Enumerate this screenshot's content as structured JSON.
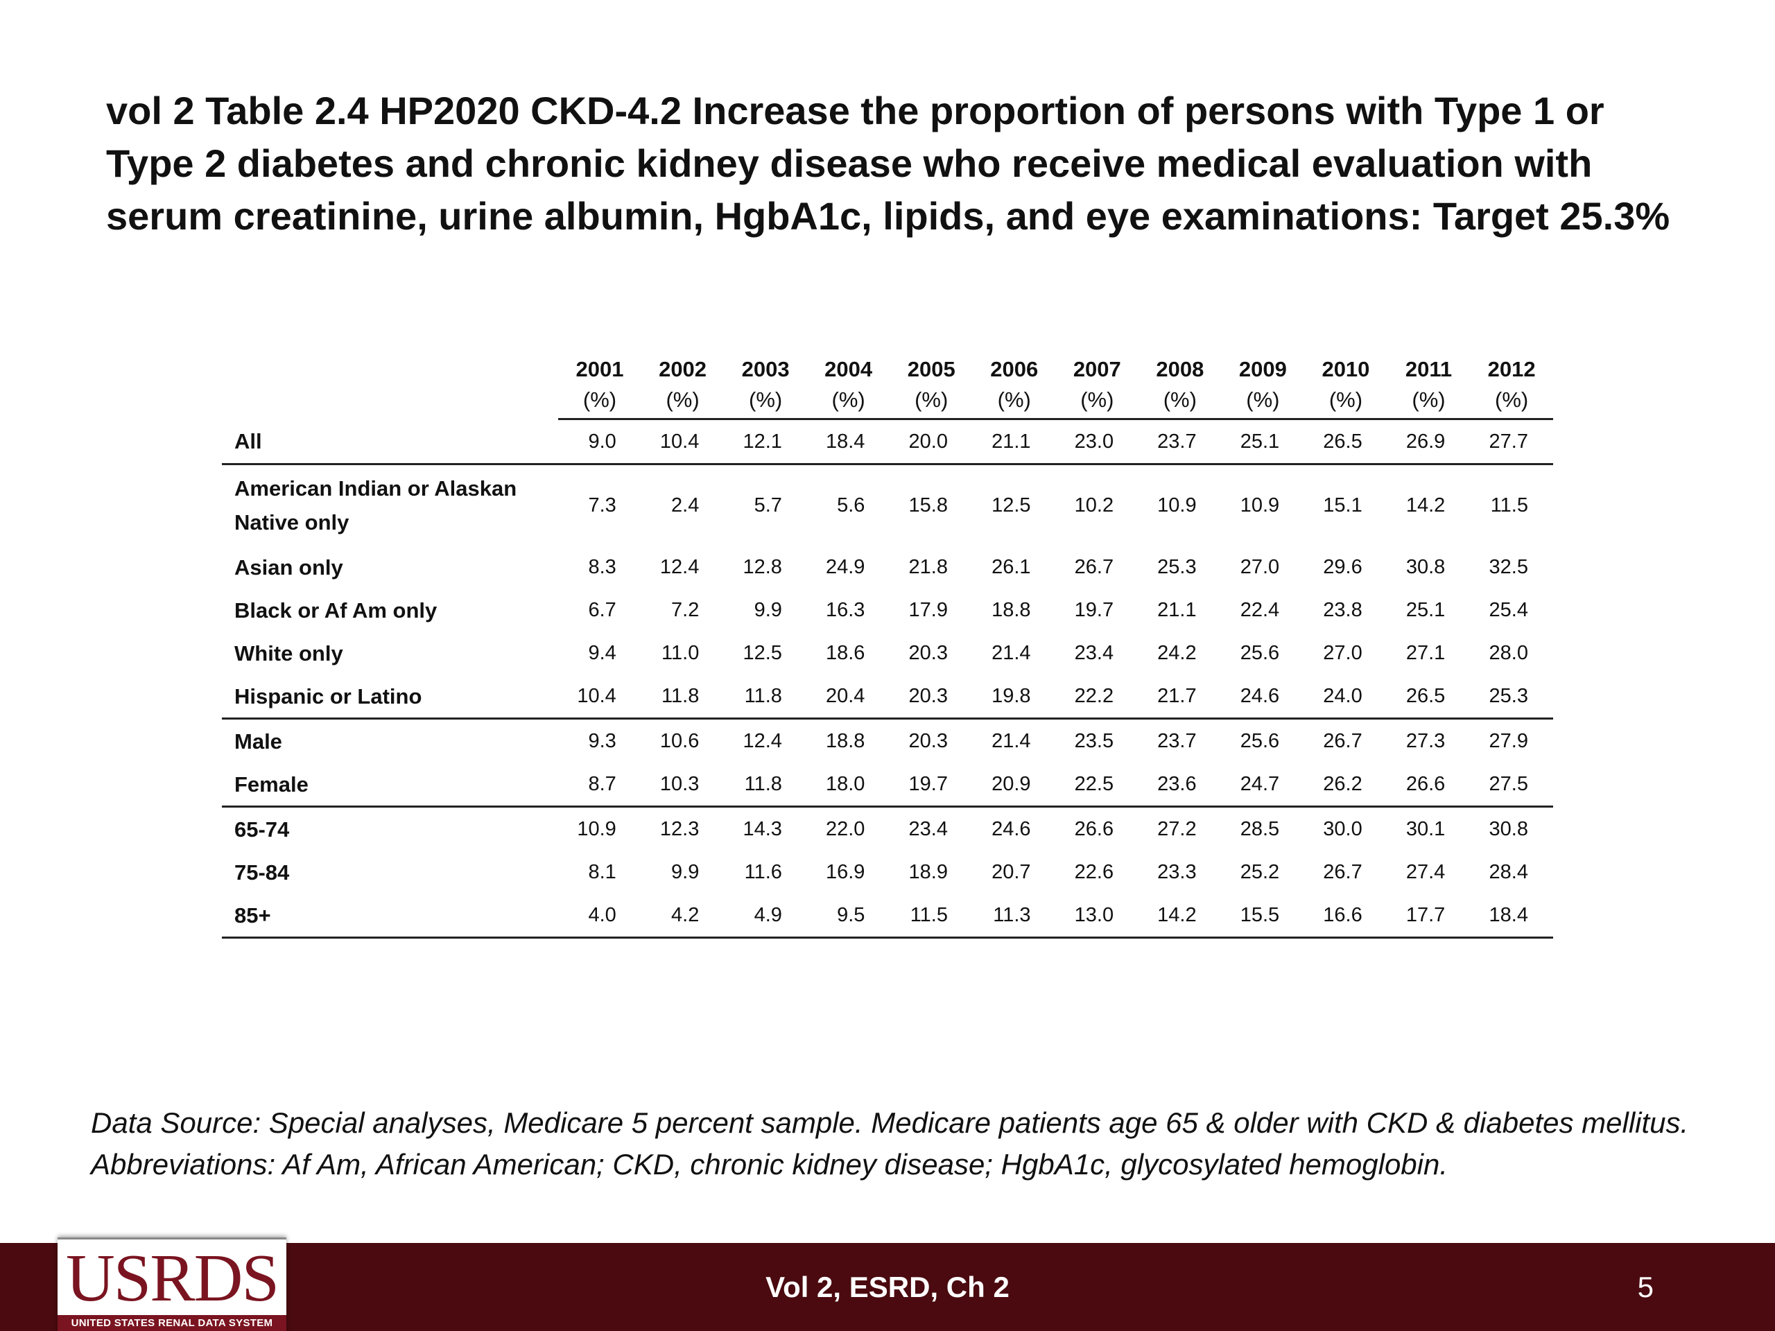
{
  "slide": {
    "title": "vol 2 Table 2.4  HP2020 CKD-4.2 Increase the proportion of persons with Type 1 or Type 2 diabetes and chronic kidney disease who receive medical evaluation with serum creatinine, urine albumin, HgbA1c, lipids, and eye examinations: Target 25.3%",
    "source_note": "Data Source: Special analyses, Medicare 5 percent sample. Medicare patients age 65 & older with CKD & diabetes mellitus. Abbreviations: Af Am, African American; CKD, chronic kidney disease; HgbA1c, glycosylated hemoglobin."
  },
  "table": {
    "years": [
      "2001",
      "2002",
      "2003",
      "2004",
      "2005",
      "2006",
      "2007",
      "2008",
      "2009",
      "2010",
      "2011",
      "2012"
    ],
    "unit": "(%)",
    "rows": [
      {
        "label": "All",
        "values": [
          "9.0",
          "10.4",
          "12.1",
          "18.4",
          "20.0",
          "21.1",
          "23.0",
          "23.7",
          "25.1",
          "26.5",
          "26.9",
          "27.7"
        ]
      },
      {
        "label": "American Indian or Alaskan Native only",
        "values": [
          "7.3",
          "2.4",
          "5.7",
          "5.6",
          "15.8",
          "12.5",
          "10.2",
          "10.9",
          "10.9",
          "15.1",
          "14.2",
          "11.5"
        ]
      },
      {
        "label": "Asian only",
        "values": [
          "8.3",
          "12.4",
          "12.8",
          "24.9",
          "21.8",
          "26.1",
          "26.7",
          "25.3",
          "27.0",
          "29.6",
          "30.8",
          "32.5"
        ]
      },
      {
        "label": "Black or Af Am only",
        "values": [
          "6.7",
          "7.2",
          "9.9",
          "16.3",
          "17.9",
          "18.8",
          "19.7",
          "21.1",
          "22.4",
          "23.8",
          "25.1",
          "25.4"
        ]
      },
      {
        "label": "White only",
        "values": [
          "9.4",
          "11.0",
          "12.5",
          "18.6",
          "20.3",
          "21.4",
          "23.4",
          "24.2",
          "25.6",
          "27.0",
          "27.1",
          "28.0"
        ]
      },
      {
        "label": "Hispanic or Latino",
        "values": [
          "10.4",
          "11.8",
          "11.8",
          "20.4",
          "20.3",
          "19.8",
          "22.2",
          "21.7",
          "24.6",
          "24.0",
          "26.5",
          "25.3"
        ]
      },
      {
        "label": "Male",
        "values": [
          "9.3",
          "10.6",
          "12.4",
          "18.8",
          "20.3",
          "21.4",
          "23.5",
          "23.7",
          "25.6",
          "26.7",
          "27.3",
          "27.9"
        ]
      },
      {
        "label": "Female",
        "values": [
          "8.7",
          "10.3",
          "11.8",
          "18.0",
          "19.7",
          "20.9",
          "22.5",
          "23.6",
          "24.7",
          "26.2",
          "26.6",
          "27.5"
        ]
      },
      {
        "label": "65-74",
        "values": [
          "10.9",
          "12.3",
          "14.3",
          "22.0",
          "23.4",
          "24.6",
          "26.6",
          "27.2",
          "28.5",
          "30.0",
          "30.1",
          "30.8"
        ]
      },
      {
        "label": "75-84",
        "values": [
          "8.1",
          "9.9",
          "11.6",
          "16.9",
          "18.9",
          "20.7",
          "22.6",
          "23.3",
          "25.2",
          "26.7",
          "27.4",
          "28.4"
        ]
      },
      {
        "label": "85+",
        "values": [
          "4.0",
          "4.2",
          "4.9",
          "9.5",
          "11.5",
          "11.3",
          "13.0",
          "14.2",
          "15.5",
          "16.6",
          "17.7",
          "18.4"
        ]
      }
    ]
  },
  "footer": {
    "center_text": "Vol 2, ESRD, Ch 2",
    "page_number": "5",
    "logo_text": "USRDS",
    "logo_subtext": "UNITED STATES RENAL DATA SYSTEM"
  },
  "colors": {
    "footer_bg": "#4a0a0f",
    "logo_red": "#7a1420"
  }
}
